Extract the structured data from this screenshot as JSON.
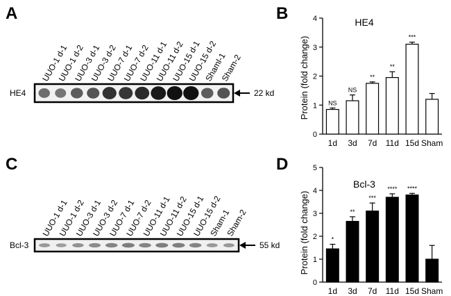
{
  "panels": {
    "a": {
      "letter": "A"
    },
    "b": {
      "letter": "B"
    },
    "c": {
      "letter": "C"
    },
    "d": {
      "letter": "D"
    }
  },
  "blot_top": {
    "protein": "HE4",
    "size": "22 kd",
    "lanes": [
      "UUO-1 d-1",
      "UUO-1 d-2",
      "UUO-3 d-1",
      "UUO-3 d-2",
      "UUO-7 d-1",
      "UUO-7 d-2",
      "UUO-11 d-1",
      "UUO-11 d-2",
      "UUO-15 d-1",
      "UUO-15 d-2",
      "Shaml-1",
      "Sham-2"
    ],
    "band_intensity": [
      0.45,
      0.4,
      0.55,
      0.6,
      0.8,
      0.78,
      0.85,
      0.95,
      1.0,
      1.0,
      0.55,
      0.6
    ],
    "band_color": "#111111"
  },
  "blot_bottom": {
    "protein": "Bcl-3",
    "size": "55 kd",
    "lanes": [
      "UUO-1 d-1",
      "UUO-1 d-2",
      "UUO-3 d-1",
      "UUO-3 d-2",
      "UUO-7 d-1",
      "UUO-7 d-2",
      "UUO-11 d-1",
      "UUO-11 d-2",
      "UUO-15 d-1",
      "UUO-15 d-2",
      "Sham-1",
      "Sham-2"
    ],
    "band_intensity": [
      0.35,
      0.3,
      0.4,
      0.45,
      0.5,
      0.55,
      0.5,
      0.55,
      0.55,
      0.5,
      0.35,
      0.35
    ],
    "band_color": "#444444"
  },
  "chart_data": [
    {
      "type": "bar",
      "title": "HE4",
      "xlabel": "",
      "ylabel": "Protein (fold change)",
      "categories": [
        "1d",
        "3d",
        "7d",
        "11d",
        "15d",
        "Sham"
      ],
      "values": [
        0.85,
        1.15,
        1.75,
        1.95,
        3.1,
        1.2
      ],
      "errors": [
        0.05,
        0.2,
        0.05,
        0.2,
        0.07,
        0.2
      ],
      "significance": [
        "NS",
        "NS",
        "**",
        "**",
        "***",
        ""
      ],
      "ylim": [
        0,
        4
      ],
      "yticks": [
        "0",
        "1",
        "2",
        "3",
        "4"
      ],
      "bar_color": "#ffffff",
      "grid": false
    },
    {
      "type": "bar",
      "title": "Bcl-3",
      "xlabel": "",
      "ylabel": "Protein (fold change)",
      "categories": [
        "1d",
        "3d",
        "7d",
        "11d",
        "15d",
        "Sham"
      ],
      "values": [
        1.45,
        2.65,
        3.1,
        3.7,
        3.8,
        1.0
      ],
      "errors": [
        0.2,
        0.2,
        0.35,
        0.15,
        0.07,
        0.6
      ],
      "significance": [
        "*",
        "**",
        "***",
        "****",
        "****",
        ""
      ],
      "ylim": [
        0,
        5
      ],
      "yticks": [
        "0",
        "1",
        "2",
        "3",
        "4",
        "5"
      ],
      "bar_color": "#000000",
      "grid": false
    }
  ]
}
